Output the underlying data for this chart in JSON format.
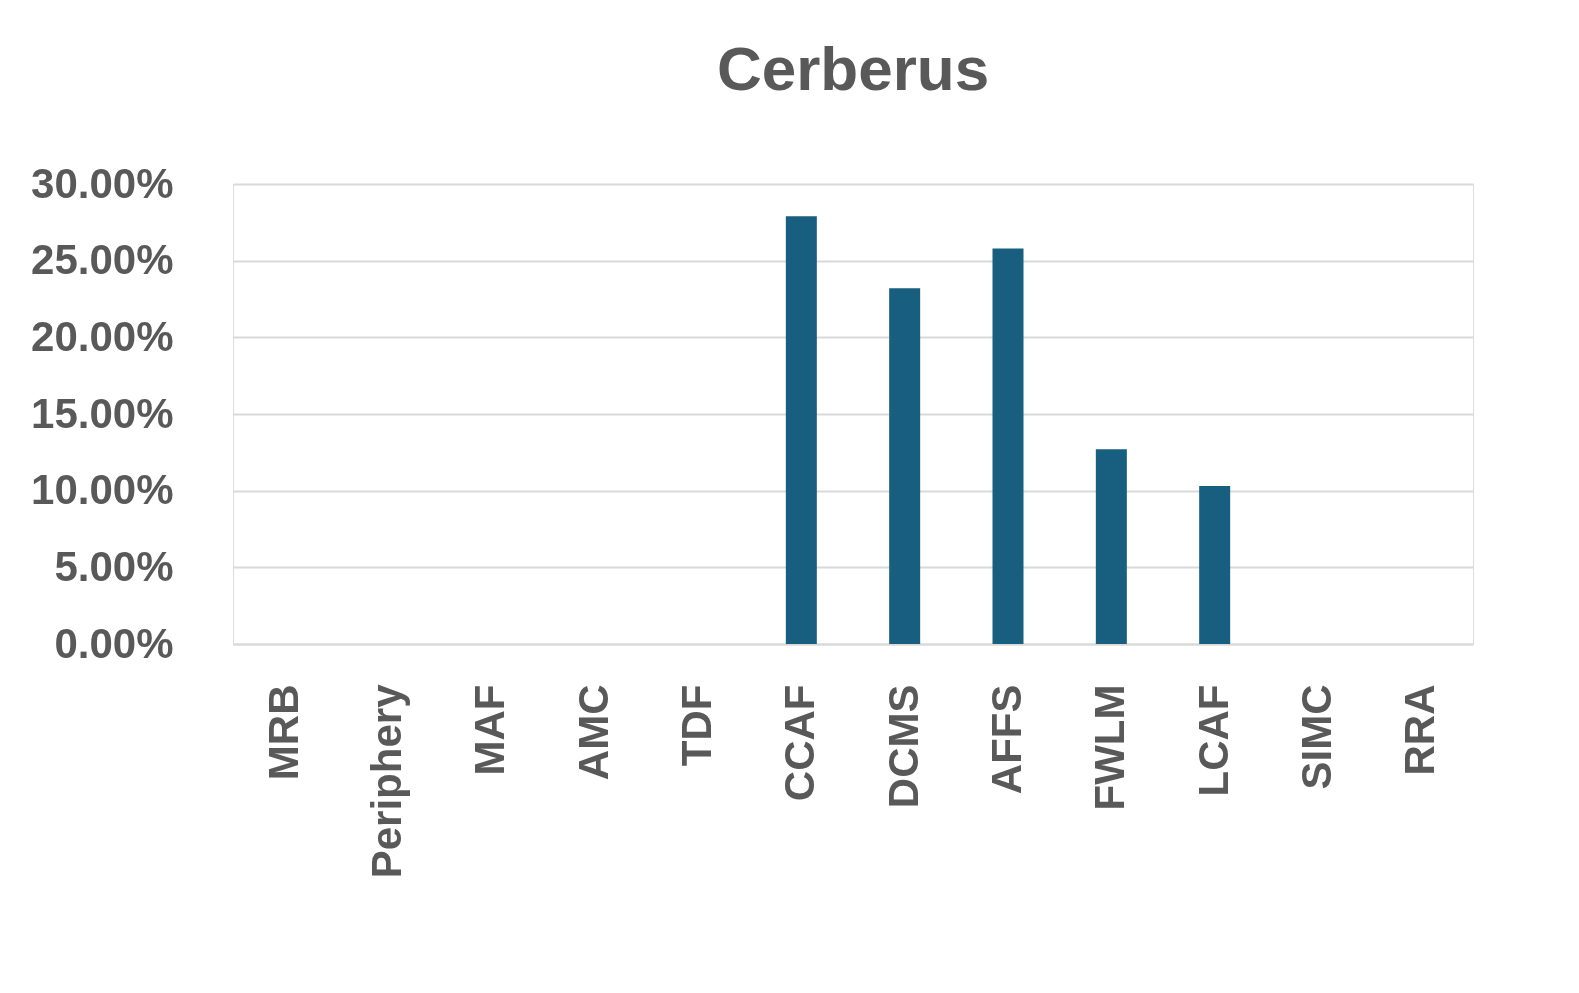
{
  "chart_data": {
    "type": "bar",
    "title": "Cerberus",
    "categories": [
      "MRB",
      "Periphery",
      "MAF",
      "AMC",
      "TDF",
      "CCAF",
      "DCMS",
      "AFFS",
      "FWLM",
      "LCAF",
      "SIMC",
      "RRA"
    ],
    "values": [
      0,
      0,
      0,
      0,
      0,
      27.9,
      23.2,
      25.8,
      12.7,
      10.3,
      0,
      0
    ],
    "color": "#175e7f",
    "ylim": [
      0,
      30
    ],
    "yticks": [
      {
        "value": 0,
        "label": "0.00%"
      },
      {
        "value": 5,
        "label": "5.00%"
      },
      {
        "value": 10,
        "label": "10.00%"
      },
      {
        "value": 15,
        "label": "15.00%"
      },
      {
        "value": 20,
        "label": "20.00%"
      },
      {
        "value": 25,
        "label": "25.00%"
      },
      {
        "value": 30,
        "label": "30.00%"
      }
    ],
    "grid": "y"
  }
}
